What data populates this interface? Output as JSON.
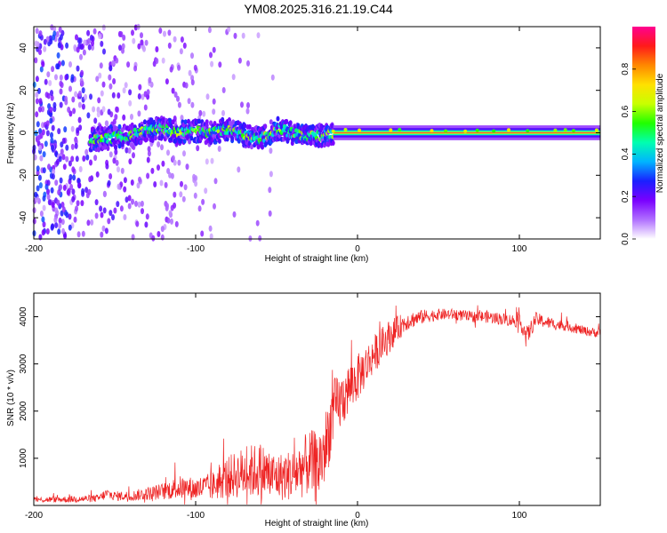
{
  "title": "YM08.2025.316.21.19.C44",
  "chart_data": [
    {
      "type": "heatmap",
      "name": "spectrogram",
      "xlabel": "Height of straight line (km)",
      "ylabel": "Frequency (Hz)",
      "xlim": [
        -200,
        150
      ],
      "ylim": [
        -50,
        50
      ],
      "xticks": [
        -200,
        -100,
        0,
        100
      ],
      "xtick_labels": [
        "-200",
        "-100",
        "0",
        "100"
      ],
      "yticks": [
        -40,
        -20,
        0,
        20,
        40
      ],
      "ytick_labels": [
        "-40",
        "-20",
        "0",
        "20",
        "40"
      ],
      "colorbar": {
        "label": "Normalized spectral amplitude",
        "range": [
          0.0,
          1.0
        ],
        "ticks": [
          0.0,
          0.2,
          0.4,
          0.6,
          0.8
        ],
        "tick_labels": [
          "0.0",
          "0.2",
          "0.4",
          "0.6",
          "0.8"
        ],
        "colors": [
          "#ffffff",
          "#b070ff",
          "#7a00ff",
          "#1a20ff",
          "#00b4ff",
          "#00ffb0",
          "#20ff00",
          "#c8ff00",
          "#ffe000",
          "#ff8800",
          "#ff1a1a",
          "#ff0090"
        ]
      },
      "ridge": {
        "description_points_x": [
          -160,
          -150,
          -140,
          -130,
          -120,
          -110,
          -100,
          -90,
          -80,
          -70,
          -60,
          -50,
          -40,
          -30,
          -20,
          -15,
          0,
          10,
          20,
          50,
          100,
          105,
          150
        ],
        "description_points_freq": [
          -3,
          -2,
          -1,
          1,
          2,
          0,
          1,
          0,
          2,
          -1,
          -3,
          2,
          0,
          -2,
          -1,
          0,
          1,
          0,
          0,
          0,
          0,
          0,
          0
        ]
      }
    },
    {
      "type": "line",
      "name": "snr",
      "xlabel": "Height of straight line (km)",
      "ylabel": "SNR (10 * v/v)",
      "xlim": [
        -200,
        150
      ],
      "ylim": [
        0,
        4500
      ],
      "xticks": [
        -200,
        -100,
        0,
        100
      ],
      "xtick_labels": [
        "-200",
        "-100",
        "0",
        "100"
      ],
      "yticks": [
        1000,
        2000,
        3000,
        4000
      ],
      "ytick_labels": [
        "1000",
        "2000",
        "3000",
        "4000"
      ],
      "color": "#ee2222",
      "envelope": {
        "x": [
          -200,
          -180,
          -160,
          -155,
          -150,
          -140,
          -130,
          -120,
          -110,
          -100,
          -90,
          -80,
          -70,
          -60,
          -50,
          -40,
          -30,
          -25,
          -20,
          -15,
          -10,
          -5,
          0,
          10,
          20,
          30,
          40,
          50,
          60,
          70,
          80,
          90,
          100,
          105,
          110,
          120,
          130,
          140,
          150
        ],
        "y": [
          120,
          130,
          150,
          250,
          200,
          200,
          250,
          300,
          380,
          350,
          400,
          600,
          700,
          750,
          600,
          650,
          900,
          800,
          1200,
          2000,
          2200,
          2500,
          2700,
          3200,
          3600,
          3900,
          4000,
          4050,
          4050,
          4000,
          4000,
          3950,
          3900,
          3600,
          3950,
          3850,
          3800,
          3700,
          3650
        ],
        "noise": [
          60,
          70,
          80,
          120,
          100,
          110,
          140,
          180,
          250,
          250,
          300,
          450,
          550,
          600,
          500,
          550,
          700,
          800,
          800,
          700,
          600,
          550,
          500,
          400,
          350,
          200,
          150,
          120,
          120,
          120,
          130,
          130,
          140,
          200,
          150,
          120,
          110,
          100,
          100
        ]
      }
    }
  ]
}
